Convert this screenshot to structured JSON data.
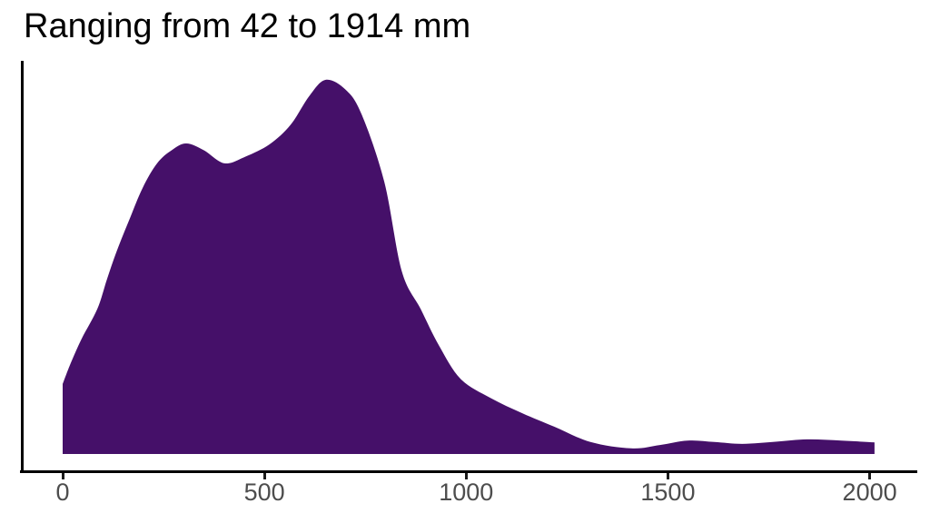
{
  "page": {
    "background": "#ffffff"
  },
  "chart_data": {
    "type": "area",
    "subtype": "density",
    "title": "Ranging from 42 to 1914 mm",
    "xlabel": "",
    "ylabel": "",
    "x_ticks": [
      0,
      500,
      1000,
      1500,
      2000
    ],
    "x_axis_range_mm": [
      0,
      2013
    ],
    "data_min_mm": 42,
    "data_max_mm": 1914,
    "y_axis": "hidden (no ticks or labels)",
    "grid": "off",
    "legend": "none",
    "colors": {
      "fill": "#451069",
      "title_text": "#000000",
      "axis_line": "#000000",
      "tick_mark": "#1a1a1a",
      "tick_label": "#4d4d4d"
    },
    "density_points_mm_relheight": [
      [
        0,
        0.187
      ],
      [
        20,
        0.243
      ],
      [
        47,
        0.308
      ],
      [
        86,
        0.388
      ],
      [
        110,
        0.468
      ],
      [
        137,
        0.551
      ],
      [
        167,
        0.631
      ],
      [
        198,
        0.711
      ],
      [
        234,
        0.777
      ],
      [
        270,
        0.812
      ],
      [
        306,
        0.83
      ],
      [
        350,
        0.812
      ],
      [
        401,
        0.777
      ],
      [
        453,
        0.795
      ],
      [
        513,
        0.828
      ],
      [
        565,
        0.88
      ],
      [
        610,
        0.955
      ],
      [
        651,
        1.0
      ],
      [
        700,
        0.975
      ],
      [
        740,
        0.91
      ],
      [
        797,
        0.728
      ],
      [
        840,
        0.49
      ],
      [
        887,
        0.388
      ],
      [
        932,
        0.291
      ],
      [
        986,
        0.201
      ],
      [
        1060,
        0.15
      ],
      [
        1139,
        0.109
      ],
      [
        1218,
        0.073
      ],
      [
        1308,
        0.032
      ],
      [
        1409,
        0.015
      ],
      [
        1480,
        0.024
      ],
      [
        1549,
        0.036
      ],
      [
        1615,
        0.032
      ],
      [
        1684,
        0.027
      ],
      [
        1770,
        0.033
      ],
      [
        1845,
        0.039
      ],
      [
        1930,
        0.036
      ],
      [
        2012,
        0.031
      ]
    ]
  }
}
